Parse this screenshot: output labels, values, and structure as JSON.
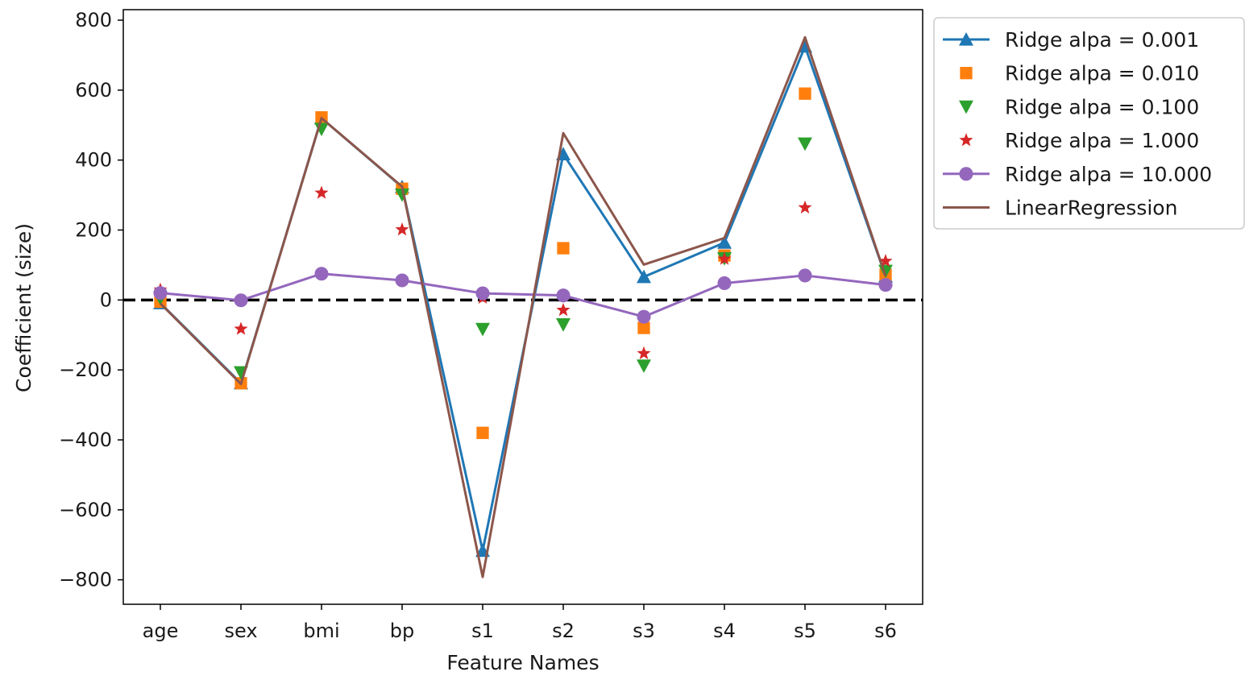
{
  "chart_data": {
    "type": "line",
    "title": "",
    "xlabel": "Feature Names",
    "ylabel": "Coefficient (size)",
    "categories": [
      "age",
      "sex",
      "bmi",
      "bp",
      "s1",
      "s2",
      "s3",
      "s4",
      "s5",
      "s6"
    ],
    "ylim": [
      -870,
      830
    ],
    "yticks": [
      -800,
      -600,
      -400,
      -200,
      0,
      200,
      400,
      600,
      800
    ],
    "yticks_text": [
      "−800",
      "−600",
      "−400",
      "−200",
      "0",
      "200",
      "400",
      "600",
      "800"
    ],
    "grid": false,
    "legend_position": "outside-top-right",
    "reference_line": {
      "y": 0,
      "style": "dashed",
      "color": "#000000"
    },
    "series": [
      {
        "name": "Ridge alpa = 0.001",
        "color": "#1f77b4",
        "line": true,
        "marker": "triangle-up",
        "values": [
          -9,
          -238,
          520,
          323,
          -717,
          417,
          66,
          164,
          725,
          68
        ]
      },
      {
        "name": "Ridge alpa = 0.010",
        "color": "#ff7f0e",
        "line": false,
        "marker": "square",
        "values": [
          -5,
          -238,
          522,
          318,
          -380,
          148,
          -80,
          127,
          590,
          72
        ]
      },
      {
        "name": "Ridge alpa = 0.100",
        "color": "#2ca02c",
        "line": false,
        "marker": "triangle-down",
        "values": [
          5,
          -207,
          489,
          301,
          -83,
          -70,
          -188,
          119,
          447,
          83
        ]
      },
      {
        "name": "Ridge alpa = 1.000",
        "color": "#d62728",
        "line": false,
        "marker": "star",
        "values": [
          29,
          -83,
          306,
          201,
          6,
          -29,
          -153,
          117,
          264,
          111
        ]
      },
      {
        "name": "Ridge alpa = 10.000",
        "color": "#9467bd",
        "line": true,
        "marker": "circle",
        "values": [
          20,
          -1,
          75,
          56,
          19,
          13,
          -48,
          48,
          70,
          43
        ]
      },
      {
        "name": "LinearRegression",
        "color": "#8c564b",
        "line": true,
        "marker": "none",
        "values": [
          -10,
          -240,
          520,
          324,
          -792,
          477,
          101,
          177,
          751,
          68
        ]
      }
    ]
  }
}
